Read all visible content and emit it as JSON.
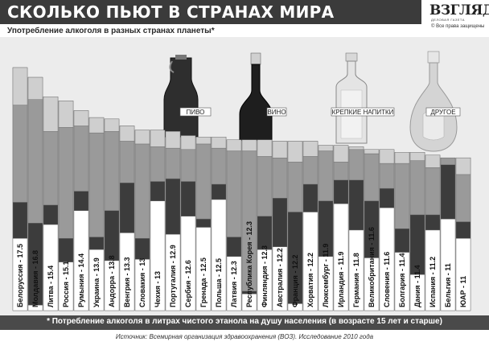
{
  "header": {
    "title": "СКОЛЬКО ПЬЮТ В СТРАНАХ МИРА",
    "subtitle": "Употребление алкоголя в разных странах планеты*"
  },
  "logo": {
    "word": "ВЗГЛЯД",
    "tagline": "ДЕЛОВАЯ ГАЗЕТА",
    "copyright": "© Все права защищены"
  },
  "footnote": "* Потребление алкоголя в литрах чистого этанола на душу населения (в возрасте 15 лет и старше)",
  "source": "Источник: Всемирная организация здравоохранения (ВОЗ). Исследование 2010 года",
  "colors": {
    "beer": "#ffffff",
    "wine": "#3c3c3c",
    "spirits": "#9a9a9a",
    "other": "#cfcfcf",
    "background": "#ececec"
  },
  "chart_data": {
    "type": "bar",
    "stacked": true,
    "categories": [
      "Белоруссия",
      "Молдавия",
      "Литва",
      "Россия",
      "Румыния",
      "Украина",
      "Андорра",
      "Венгрия",
      "Словакия",
      "Чехия",
      "Португалия",
      "Сербия",
      "Гренада",
      "Польша",
      "Латвия",
      "Республика Корея",
      "Финляндия",
      "Австралия",
      "Франция",
      "Хорватия",
      "Люксембург",
      "Ирландия",
      "Германия",
      "Великобритания",
      "Словения",
      "Болгария",
      "Дания",
      "Испания",
      "Бельгия",
      "ЮАР"
    ],
    "label_suffixes": [
      "- 17.5",
      "- 16.8",
      "- 15.4",
      "- 15.1",
      "- 14.4",
      "- 13.9",
      "- 13.8",
      "- 13.3",
      "- 13",
      "- 13",
      "- 12.9",
      "- 12.6",
      "- 12.5",
      "- 12.5",
      "- 12.3",
      "- 12.3",
      "- 12.3",
      "- 12.2",
      "- 12.2",
      "- 12.2",
      "- 11.9",
      "- 11.9",
      "- 11.8",
      "- 11.6",
      "- 11.6",
      "- 11.4",
      "- 11.4",
      "- 11.2",
      "- 11",
      "- 11"
    ],
    "totals": [
      17.5,
      16.8,
      15.4,
      15.1,
      14.4,
      13.9,
      13.8,
      13.3,
      13.0,
      13.0,
      12.9,
      12.6,
      12.5,
      12.5,
      12.3,
      12.3,
      12.3,
      12.2,
      12.2,
      12.2,
      11.9,
      11.9,
      11.8,
      11.6,
      11.6,
      11.4,
      11.4,
      11.2,
      11.0,
      11.0
    ],
    "series": [
      {
        "name": "ПИВО",
        "values": [
          5.2,
          0.4,
          6.2,
          3.5,
          7.2,
          4.4,
          3.6,
          5.6,
          3.7,
          7.9,
          5.5,
          6.8,
          6.0,
          8.0,
          3.9,
          1.2,
          4.4,
          4.6,
          0.5,
          7.1,
          3.9,
          7.7,
          5.8,
          3.8,
          7.4,
          4.2,
          2.6,
          5.8,
          6.6,
          5.2
        ]
      },
      {
        "name": "ВИНО",
        "values": [
          2.6,
          5.9,
          1.4,
          1.7,
          1.4,
          0.9,
          3.6,
          3.6,
          1.5,
          1.4,
          4.0,
          2.5,
          0.6,
          1.1,
          1.4,
          0.2,
          2.4,
          3.5,
          6.6,
          2.0,
          4.0,
          1.7,
          3.6,
          4.1,
          1.4,
          1.7,
          4.3,
          1.1,
          3.9,
          1.2
        ]
      },
      {
        "name": "КРЕПКИЕ НАПИТКИ",
        "values": [
          7.0,
          8.9,
          5.3,
          8.0,
          4.7,
          7.5,
          5.7,
          3.0,
          6.8,
          2.5,
          2.2,
          2.3,
          5.4,
          2.6,
          6.2,
          10.1,
          4.3,
          2.9,
          3.6,
          2.0,
          3.6,
          1.3,
          2.2,
          3.4,
          1.8,
          4.7,
          3.9,
          3.4,
          0.5,
          3.4
        ]
      },
      {
        "name": "ДРУГОЕ",
        "values": [
          2.7,
          1.6,
          2.5,
          1.9,
          1.1,
          1.1,
          0.9,
          1.1,
          1.0,
          1.2,
          1.2,
          1.0,
          0.5,
          0.8,
          0.8,
          0.8,
          1.2,
          1.2,
          1.5,
          1.1,
          0.4,
          1.2,
          0.2,
          0.3,
          1.0,
          0.8,
          0.6,
          0.9,
          0.0,
          1.2
        ]
      }
    ],
    "ylim": [
      0,
      17.5
    ],
    "grid": false,
    "legend": "top (bottles)",
    "xlabel": "",
    "ylabel": ""
  }
}
